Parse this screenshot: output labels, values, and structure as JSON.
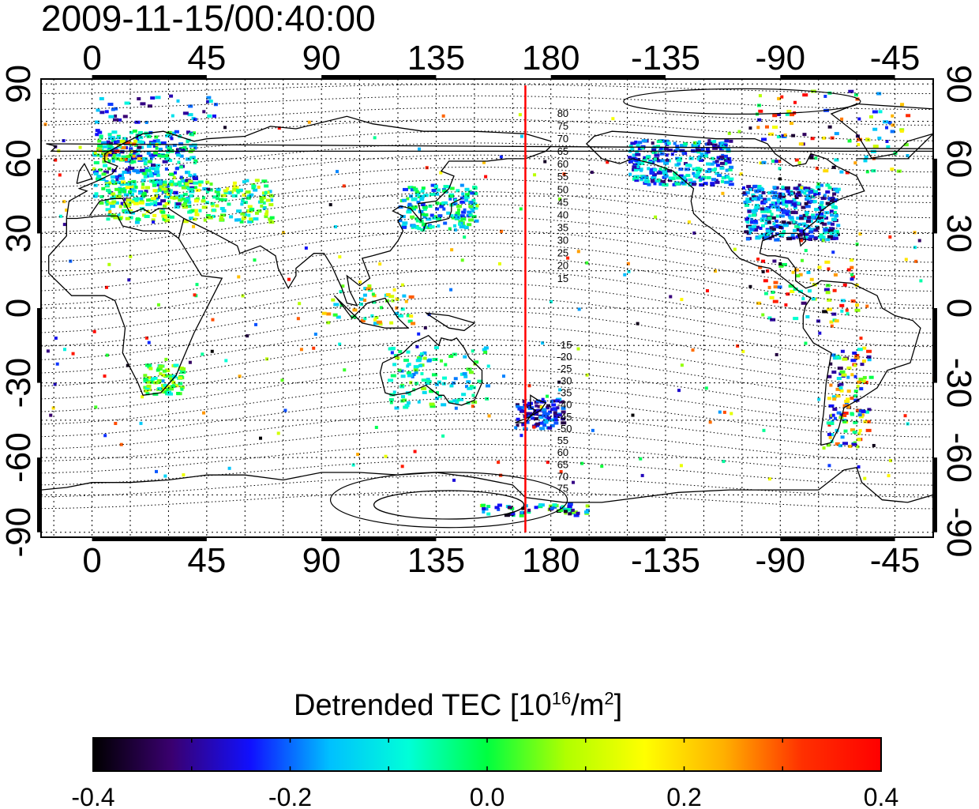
{
  "title": "2009-11-15/00:40:00",
  "map": {
    "lon_ticks": [
      "0",
      "45",
      "90",
      "135",
      "180",
      "-135",
      "-90",
      "-45"
    ],
    "lat_ticks": [
      "90",
      "60",
      "30",
      "0",
      "-30",
      "-60",
      "-90"
    ],
    "lon_tick_values": [
      0,
      45,
      90,
      135,
      180,
      225,
      270,
      315
    ],
    "lat_tick_values": [
      90,
      60,
      30,
      0,
      -30,
      -60,
      -90
    ],
    "lon_range": [
      -20,
      330
    ],
    "lat_range": [
      -92,
      92
    ],
    "grid": true,
    "meridian_line": {
      "longitude": 170,
      "color": "#ff0000"
    },
    "contour_labels_north": [
      "80",
      "75",
      "70",
      "65",
      "60",
      "55",
      "50",
      "45",
      "40",
      "35",
      "30",
      "25",
      "20",
      "15"
    ],
    "contour_labels_south": [
      "-15",
      "-20",
      "-25",
      "-30",
      "-35",
      "-40",
      "-45",
      "-50",
      "55",
      "60",
      "65",
      "70",
      "75"
    ]
  },
  "colorbar": {
    "title_main": "Detrended TEC  [10",
    "title_exp1": "16",
    "title_mid": "/m",
    "title_exp2": "2",
    "title_end": "]",
    "ticks": [
      "-0.4",
      "-0.2",
      "0.0",
      "0.2",
      "0.4"
    ],
    "range": [
      -0.4,
      0.4
    ],
    "colormap": [
      "#000000",
      "#3a0070",
      "#1010ff",
      "#00c0ff",
      "#00ffd8",
      "#00ff40",
      "#b0ff00",
      "#ffff00",
      "#ffb000",
      "#ff3000",
      "#ff0000"
    ]
  }
}
